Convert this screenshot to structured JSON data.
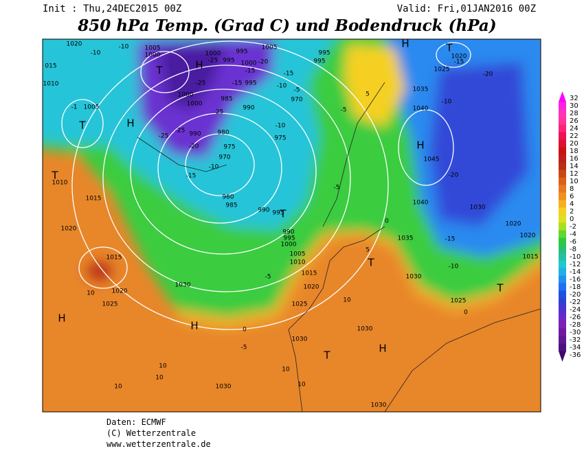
{
  "header": {
    "init": "Init : Thu,24DEC2015 00Z",
    "valid": "Valid: Fri,01JAN2016 00Z",
    "title": "850 hPa Temp. (Grad C) und Bodendruck (hPa)"
  },
  "colorbar": {
    "levels": [
      32,
      30,
      28,
      26,
      24,
      22,
      20,
      18,
      16,
      14,
      12,
      10,
      8,
      6,
      4,
      2,
      0,
      -2,
      -4,
      -6,
      -8,
      -10,
      -12,
      -14,
      -16,
      -18,
      -20,
      -22,
      -24,
      -26,
      -28,
      -30,
      -32,
      -34,
      -36
    ],
    "colors": [
      "#ff00ff",
      "#ff22dd",
      "#ff33bb",
      "#ff3399",
      "#ff2277",
      "#ee1155",
      "#dd1133",
      "#cc1111",
      "#c02018",
      "#b83015",
      "#c84818",
      "#dc6018",
      "#e87820",
      "#f09020",
      "#f5b020",
      "#f5d020",
      "#e0e020",
      "#a8e020",
      "#60d830",
      "#30c840",
      "#28c070",
      "#20c0a0",
      "#20c8d0",
      "#20b0e8",
      "#2090f0",
      "#2070f0",
      "#2050e0",
      "#3040d0",
      "#5030d0",
      "#6a28c8",
      "#7a20b8",
      "#7018a0",
      "#601890",
      "#501080",
      "#400870"
    ]
  },
  "map": {
    "labels": [
      "1020",
      "-10",
      "-10",
      "1005",
      "1000",
      "995",
      "1005",
      "1000",
      "-25",
      "995",
      "1000",
      "-20",
      "-15",
      "995",
      "995",
      "015",
      "1010",
      "T",
      "H",
      "-25",
      "-15",
      "995",
      "-10",
      "-15",
      "-5",
      "970",
      "5",
      "1035",
      "1040",
      "-10",
      "-1",
      "1005",
      "T",
      "H",
      "1000",
      "1000",
      "985",
      "990",
      "-25",
      "-5",
      "-25",
      "-25",
      "990",
      "980",
      "-20",
      "975",
      "970",
      "975",
      "-10",
      "H",
      "1045",
      "-20",
      "T",
      "1010",
      "-10",
      "-15",
      "1015",
      "-5",
      "960",
      "985",
      "990",
      "995",
      "T",
      "1040",
      "1030",
      "-20",
      "1035",
      "-15",
      "1020",
      "1020",
      "1020",
      "990",
      "995",
      "1000",
      "1005",
      "1010",
      "0",
      "5",
      "T",
      "-10",
      "1015",
      "1015",
      "1030",
      "T",
      "1015",
      "-5",
      "1030",
      "1020",
      "10",
      "1025",
      "1020",
      "1025",
      "0",
      "10",
      "1025",
      "H",
      "H",
      "0",
      "-5",
      "1030",
      "1030",
      "T",
      "H",
      "10",
      "10",
      "10",
      "10",
      "1030",
      "10",
      "1030",
      "T",
      "H",
      "1020",
      "1025",
      "-15"
    ]
  },
  "footer": {
    "source": "Daten: ECMWF",
    "copyright": "(C) Wetterzentrale",
    "url": "www.wetterzentrale.de"
  }
}
